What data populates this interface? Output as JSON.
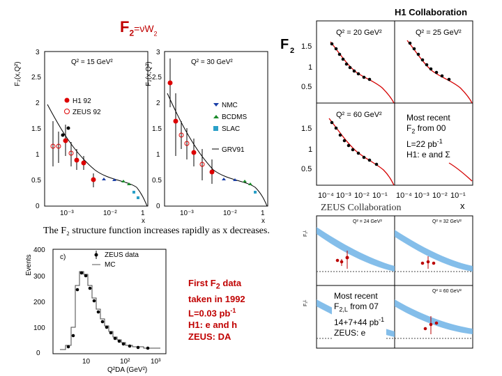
{
  "slide": {
    "title_main": "F",
    "title_sub": "2",
    "title_rest": "=νW",
    "title_rest_sub": "2"
  },
  "fig_left_top": {
    "panel1_q2": "Q² = 15 GeV²",
    "panel2_q2": "Q² = 30 GeV²",
    "ylabel": "F₂(x,Q²)",
    "xlabel": "x",
    "yticks": [
      "0",
      "0.5",
      "1",
      "1.5",
      "2",
      "2.5",
      "3"
    ],
    "xticks": [
      "10⁻³",
      "10⁻²",
      "1"
    ],
    "legend_h1": "H1 92",
    "legend_zeus": "ZEUS 92",
    "legend_nmc": "NMC",
    "legend_bcdms": "BCDMS",
    "legend_slac": "SLAC",
    "legend_grv": "GRV91",
    "caption": "The F₂ structure function increases rapidly as x decreases."
  },
  "fig_left_bottom": {
    "panel_label": "c)",
    "ylabel": "Events",
    "legend_data": "ZEUS data",
    "legend_mc": "MC",
    "yticks": [
      "0",
      "100",
      "200",
      "300",
      "400"
    ],
    "xticks": [
      "10",
      "10²",
      "10³"
    ],
    "xlabel": "Q²DA (GeV²)"
  },
  "note_first": {
    "line1": "First F",
    "line1_sub": "2",
    "line1_rest": " data",
    "line2": "taken in 1992",
    "line3": "L=0.03 pb",
    "line3_sup": "-1",
    "line4": "H1: e and h",
    "line5": "ZEUS: DA"
  },
  "fig_h1": {
    "header": "H1 Collaboration",
    "big_label": "F",
    "big_label_sub": "2",
    "q2_tl": "Q² = 20 GeV²",
    "q2_tr": "Q² = 25 GeV²",
    "q2_bl": "Q² = 60 GeV²",
    "yticks": [
      "0.5",
      "1",
      "1.5"
    ],
    "xticks": [
      "10⁻⁴",
      "10⁻³",
      "10⁻²",
      "10⁻¹"
    ],
    "xlabel": "x"
  },
  "note_h1": {
    "line1": "Most recent",
    "line2": "F",
    "line2_sub": "2",
    "line2_rest": "  from 00",
    "line3": "L=22 pb",
    "line3_sup": "-1",
    "line4": "H1: e and Σ"
  },
  "fig_zeus": {
    "header": "ZEUS Collaboration",
    "q2_tl": "Q² = 24 GeV²",
    "q2_tr": "Q² = 32 GeV²",
    "q2_br": "Q² = 60 GeV²",
    "ylabel": "F₂ᴸ"
  },
  "note_zeus": {
    "line1": "Most recent",
    "line2": "F",
    "line2_sub": "2,L",
    "line2_rest": " from 07",
    "line3": "14+7+44 pb",
    "line3_sup": "-1",
    "line4": "ZEUS: e"
  },
  "colors": {
    "accent_red": "#c00000",
    "curve_red": "#d40000",
    "band_blue": "#6fb3e6"
  }
}
